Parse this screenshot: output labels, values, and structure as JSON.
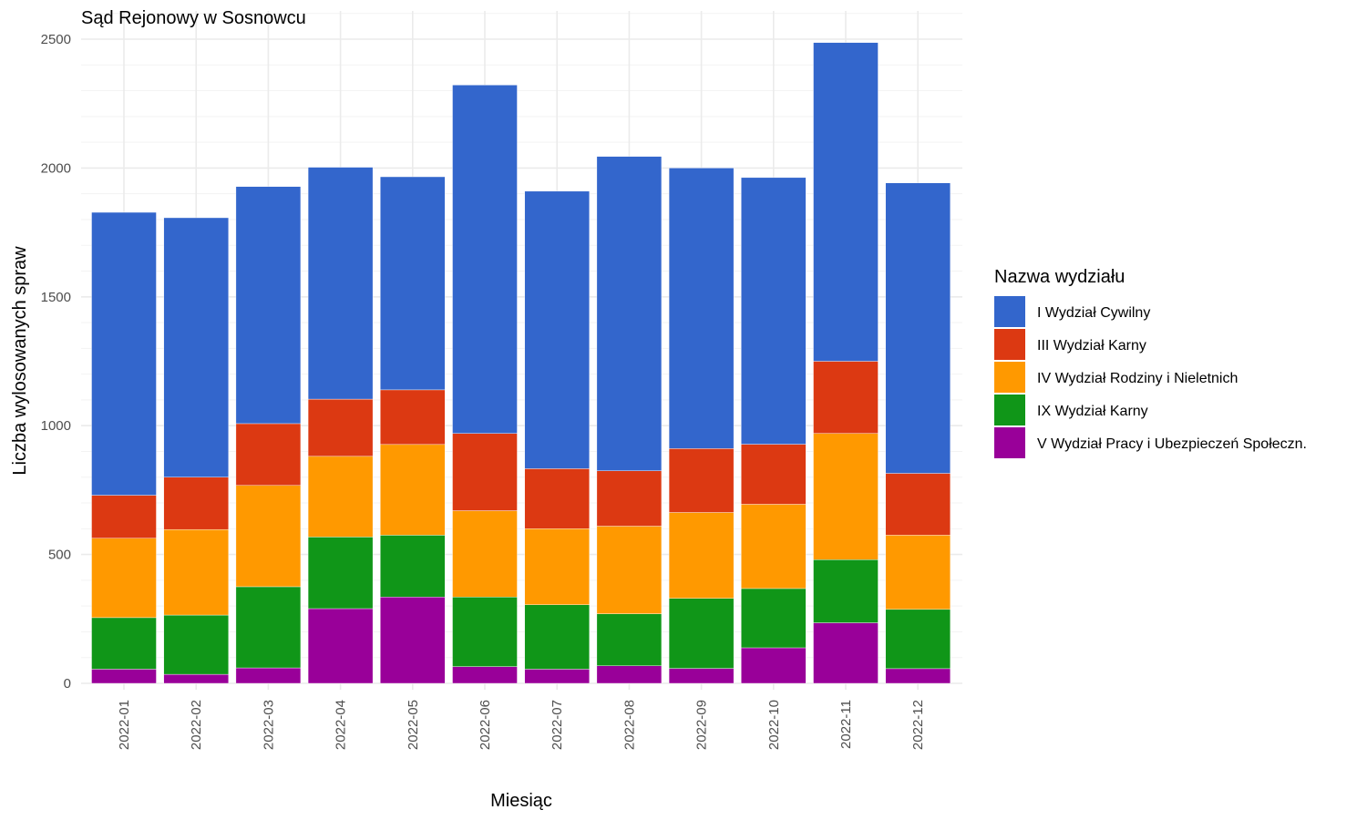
{
  "chart_data": {
    "type": "bar",
    "stacked": true,
    "title": "Sąd Rejonowy w Sosnowcu",
    "xlabel": "Miesiąc",
    "ylabel": "Liczba wylosowanych spraw",
    "ylim": [
      0,
      2500
    ],
    "yticks": [
      0,
      500,
      1000,
      1500,
      2000,
      2500
    ],
    "grid": true,
    "legend_title": "Nazwa wydziału",
    "legend_position": "right",
    "categories": [
      "2022-01",
      "2022-02",
      "2022-03",
      "2022-04",
      "2022-05",
      "2022-06",
      "2022-07",
      "2022-08",
      "2022-09",
      "2022-10",
      "2022-11",
      "2022-12"
    ],
    "series": [
      {
        "name": "V Wydział Pracy i Ubezpieczeń Społeczn.",
        "color": "#990099",
        "values": [
          55,
          35,
          60,
          290,
          335,
          65,
          55,
          68,
          58,
          138,
          235,
          57
        ]
      },
      {
        "name": "IX Wydział Karny",
        "color": "#109618",
        "values": [
          200,
          230,
          315,
          278,
          240,
          270,
          250,
          202,
          272,
          230,
          245,
          230
        ]
      },
      {
        "name": "IV Wydział Rodziny i Nieletnich",
        "color": "#FF9900",
        "values": [
          308,
          332,
          393,
          313,
          352,
          335,
          295,
          340,
          333,
          327,
          490,
          288
        ]
      },
      {
        "name": "III Wydział Karny",
        "color": "#DC3912",
        "values": [
          167,
          203,
          240,
          222,
          212,
          300,
          233,
          215,
          248,
          233,
          280,
          240
        ]
      },
      {
        "name": "I Wydział Cywilny",
        "color": "#3366CC",
        "values": [
          1098,
          1007,
          920,
          900,
          827,
          1352,
          1077,
          1220,
          1089,
          1035,
          1237,
          1127
        ]
      }
    ]
  }
}
